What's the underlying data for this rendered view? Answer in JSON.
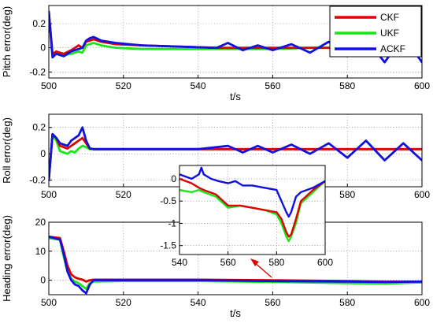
{
  "colors": {
    "CKF": "#e00000",
    "UKF": "#19e619",
    "ACKF": "#1010e0",
    "arrow": "#e00000"
  },
  "legend": {
    "entries": [
      "CKF",
      "UKF",
      "ACKF"
    ],
    "placement": "top-right of first panel"
  },
  "chart_data": [
    {
      "type": "line",
      "title": "",
      "xlabel": "t/s",
      "ylabel": "Pitch error(deg)",
      "xlim": [
        500,
        600
      ],
      "ylim": [
        -0.25,
        0.35
      ],
      "grid": true,
      "xticks": [
        "500",
        "520",
        "540",
        "560",
        "580",
        "600"
      ],
      "yticks": [
        "-0.2",
        "0",
        "0.2"
      ],
      "series": [
        {
          "name": "CKF",
          "x": [
            500,
            501,
            502,
            504,
            506,
            507,
            508,
            509,
            510,
            511,
            512,
            514,
            518,
            525,
            535,
            545,
            550,
            560,
            570,
            580,
            590,
            600
          ],
          "y": [
            0.3,
            -0.05,
            -0.03,
            -0.05,
            -0.02,
            0.0,
            0.02,
            0.0,
            0.05,
            0.06,
            0.07,
            0.05,
            0.03,
            0.02,
            0.01,
            0.0,
            0.0,
            0.0,
            0.0,
            0.0,
            0.0,
            0.0
          ]
        },
        {
          "name": "UKF",
          "x": [
            500,
            501,
            502,
            504,
            506,
            507,
            508,
            509,
            510,
            511,
            512,
            514,
            518,
            525,
            535,
            545,
            550,
            560,
            570,
            580,
            590,
            600
          ],
          "y": [
            0.3,
            -0.06,
            -0.05,
            -0.06,
            -0.05,
            -0.04,
            -0.03,
            -0.04,
            0.02,
            0.03,
            0.04,
            0.02,
            0.0,
            -0.01,
            -0.01,
            -0.01,
            -0.01,
            -0.01,
            0.0,
            0.0,
            0.0,
            0.0
          ]
        },
        {
          "name": "ACKF",
          "x": [
            500,
            501,
            502,
            504,
            506,
            507,
            508,
            509,
            510,
            511,
            512,
            514,
            518,
            525,
            535,
            545,
            548,
            552,
            556,
            560,
            565,
            570,
            575,
            580,
            585,
            590,
            595,
            600
          ],
          "y": [
            0.3,
            -0.08,
            -0.05,
            -0.07,
            -0.03,
            -0.02,
            -0.01,
            0.0,
            0.06,
            0.08,
            0.09,
            0.06,
            0.04,
            0.02,
            0.01,
            0.0,
            0.04,
            -0.02,
            0.02,
            -0.02,
            0.03,
            -0.04,
            0.05,
            -0.07,
            0.08,
            -0.12,
            0.1,
            -0.12
          ]
        }
      ]
    },
    {
      "type": "line",
      "title": "",
      "xlabel": "",
      "ylabel": "Roll error(deg)",
      "xlim": [
        500,
        600
      ],
      "ylim": [
        -0.25,
        0.3
      ],
      "grid": true,
      "xticks": [
        "500",
        "520",
        "540",
        "560",
        "580",
        "600"
      ],
      "yticks": [
        "-0.2",
        "0",
        "0.2"
      ],
      "series": [
        {
          "name": "CKF",
          "x": [
            500,
            501,
            502,
            503,
            504,
            505,
            506,
            507,
            508,
            509,
            510,
            511,
            512,
            520,
            530,
            540,
            550,
            560,
            570,
            580,
            590,
            600
          ],
          "y": [
            -0.2,
            0.15,
            0.12,
            0.06,
            0.05,
            0.04,
            0.06,
            0.08,
            0.1,
            0.12,
            0.08,
            0.04,
            0.035,
            0.035,
            0.035,
            0.035,
            0.035,
            0.035,
            0.035,
            0.035,
            0.035,
            0.035
          ]
        },
        {
          "name": "UKF",
          "x": [
            500,
            501,
            502,
            503,
            504,
            505,
            506,
            507,
            508,
            509,
            510,
            511,
            512,
            520,
            530,
            540,
            550,
            560,
            570,
            580,
            590,
            600
          ],
          "y": [
            -0.2,
            0.14,
            0.1,
            0.02,
            0.01,
            0.0,
            0.02,
            0.01,
            0.04,
            0.06,
            0.05,
            0.035,
            0.035,
            0.035,
            0.035,
            0.035,
            0.035,
            0.035,
            0.035,
            0.035,
            0.035,
            0.035
          ]
        },
        {
          "name": "ACKF",
          "x": [
            500,
            501,
            502,
            503,
            504,
            505,
            506,
            507,
            508,
            509,
            510,
            511,
            512,
            520,
            530,
            540,
            548,
            552,
            556,
            560,
            565,
            570,
            575,
            580,
            585,
            590,
            595,
            600
          ],
          "y": [
            -0.2,
            0.15,
            0.12,
            0.08,
            0.07,
            0.06,
            0.1,
            0.12,
            0.14,
            0.2,
            0.1,
            0.04,
            0.035,
            0.035,
            0.035,
            0.035,
            0.06,
            0.01,
            0.06,
            0.01,
            0.07,
            0.0,
            0.08,
            -0.03,
            0.1,
            -0.05,
            0.08,
            -0.05
          ]
        }
      ]
    },
    {
      "type": "line",
      "title": "",
      "xlabel": "t/s",
      "ylabel": "Heading error(deg)",
      "xlim": [
        500,
        600
      ],
      "ylim": [
        -5,
        20
      ],
      "grid": true,
      "xticks": [
        "500",
        "520",
        "540",
        "560",
        "580",
        "600"
      ],
      "yticks": [
        "0",
        "10",
        "20"
      ],
      "series": [
        {
          "name": "CKF",
          "x": [
            500,
            503,
            504,
            505,
            506,
            507,
            508,
            509,
            510,
            511,
            512,
            520,
            540,
            560,
            580,
            590,
            600
          ],
          "y": [
            15,
            14.5,
            10,
            5,
            2,
            1,
            0.5,
            0.2,
            -0.5,
            0,
            0.2,
            0.2,
            0.2,
            0,
            -0.3,
            -0.5,
            -0.5
          ]
        },
        {
          "name": "UKF",
          "x": [
            500,
            503,
            504,
            505,
            506,
            507,
            508,
            509,
            510,
            511,
            512,
            520,
            540,
            560,
            580,
            590,
            600
          ],
          "y": [
            14.5,
            14,
            8,
            3,
            0.5,
            -0.5,
            -1,
            -2,
            -3,
            -1,
            -0.5,
            -0.3,
            -0.3,
            -0.6,
            -1,
            -1.2,
            -0.8
          ]
        },
        {
          "name": "ACKF",
          "x": [
            500,
            503,
            504,
            505,
            506,
            507,
            508,
            509,
            510,
            511,
            512,
            520,
            540,
            560,
            580,
            590,
            600
          ],
          "y": [
            15,
            14,
            9,
            3,
            0,
            -1.5,
            -2,
            -3.5,
            -4.5,
            -1.5,
            0,
            0,
            0,
            -0.3,
            -0.5,
            -0.6,
            -0.5
          ]
        }
      ]
    },
    {
      "type": "line",
      "title": "",
      "xlabel": "",
      "ylabel": "",
      "xlim": [
        540,
        600
      ],
      "ylim": [
        -1.7,
        0.3
      ],
      "grid": true,
      "xticks": [
        "540",
        "560",
        "580",
        "600"
      ],
      "yticks": [
        "0",
        "-0.5",
        "-1",
        "-1.5"
      ],
      "series": [
        {
          "name": "CKF",
          "x": [
            540,
            545,
            548,
            550,
            555,
            560,
            565,
            570,
            575,
            580,
            582,
            584,
            585,
            586,
            588,
            590,
            595,
            600
          ],
          "y": [
            0.0,
            -0.1,
            -0.2,
            -0.25,
            -0.35,
            -0.6,
            -0.6,
            -0.65,
            -0.7,
            -0.75,
            -0.9,
            -1.2,
            -1.3,
            -1.25,
            -0.9,
            -0.5,
            -0.25,
            -0.05
          ]
        },
        {
          "name": "UKF",
          "x": [
            540,
            545,
            548,
            550,
            555,
            560,
            565,
            570,
            575,
            580,
            582,
            584,
            585,
            586,
            588,
            590,
            595,
            600
          ],
          "y": [
            -0.25,
            -0.3,
            -0.25,
            -0.3,
            -0.4,
            -0.65,
            -0.6,
            -0.65,
            -0.7,
            -0.8,
            -1.0,
            -1.3,
            -1.4,
            -1.3,
            -1.0,
            -0.55,
            -0.3,
            -0.05
          ]
        },
        {
          "name": "ACKF",
          "x": [
            540,
            545,
            548,
            549,
            550,
            553,
            556,
            560,
            563,
            566,
            570,
            575,
            580,
            582,
            584,
            585,
            586,
            588,
            590,
            595,
            600
          ],
          "y": [
            0.1,
            0.0,
            0.1,
            0.25,
            0.1,
            0.0,
            -0.05,
            -0.1,
            -0.05,
            -0.15,
            -0.15,
            -0.2,
            -0.25,
            -0.5,
            -0.75,
            -0.85,
            -0.75,
            -0.4,
            -0.3,
            -0.2,
            -0.05
          ]
        }
      ]
    }
  ]
}
